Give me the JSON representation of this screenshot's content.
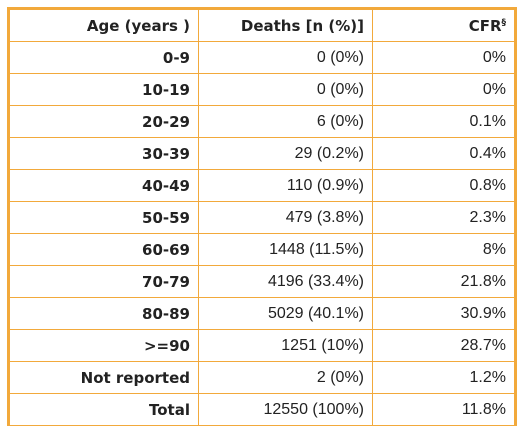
{
  "header": {
    "age": "Age (years )",
    "deaths": "Deaths [n (%)]",
    "cfr": "CFR",
    "cfr_sup": "§"
  },
  "rows": [
    {
      "age": "0-9",
      "deaths": "0 (0%)",
      "cfr": "0%"
    },
    {
      "age": "10-19",
      "deaths": "0 (0%)",
      "cfr": "0%"
    },
    {
      "age": "20-29",
      "deaths": "6 (0%)",
      "cfr": "0.1%"
    },
    {
      "age": "30-39",
      "deaths": "29 (0.2%)",
      "cfr": "0.4%"
    },
    {
      "age": "40-49",
      "deaths": "110 (0.9%)",
      "cfr": "0.8%"
    },
    {
      "age": "50-59",
      "deaths": "479 (3.8%)",
      "cfr": "2.3%"
    },
    {
      "age": "60-69",
      "deaths": "1448 (11.5%)",
      "cfr": "8%"
    },
    {
      "age": "70-79",
      "deaths": "4196 (33.4%)",
      "cfr": "21.8%"
    },
    {
      "age": "80-89",
      "deaths": "5029 (40.1%)",
      "cfr": "30.9%"
    },
    {
      "age": ">=90",
      "deaths": "1251 (10%)",
      "cfr": "28.7%"
    },
    {
      "age": "Not reported",
      "deaths": "2 (0%)",
      "cfr": "1.2%"
    },
    {
      "age": "Total",
      "deaths": "12550 (100%)",
      "cfr": "11.8%"
    }
  ],
  "colors": {
    "border": "#f2a93b",
    "text": "#222222"
  }
}
